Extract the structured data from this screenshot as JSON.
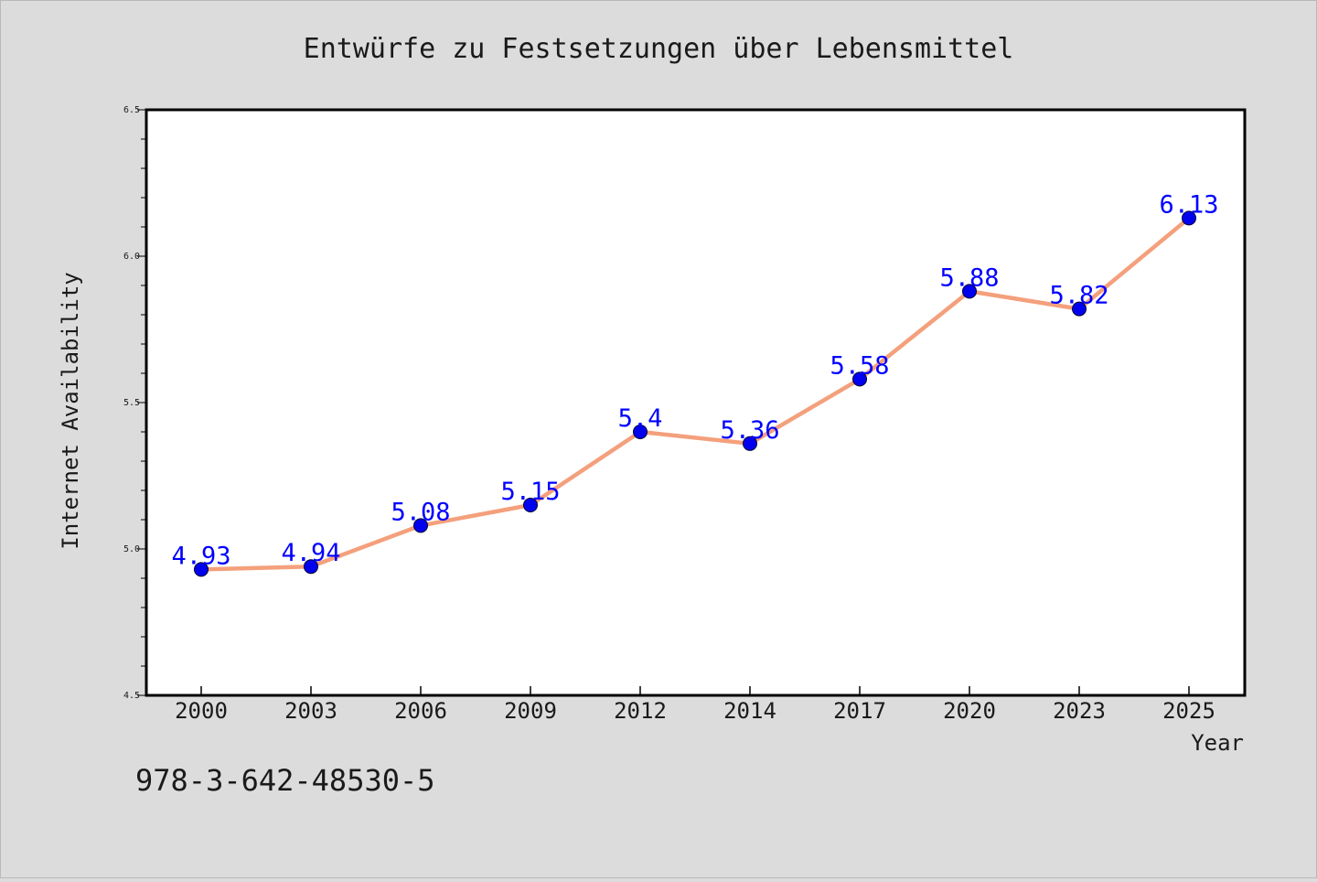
{
  "chart_data": {
    "type": "line",
    "title": "Entwürfe zu Festsetzungen über Lebensmittel",
    "xlabel": "Year",
    "ylabel": "Internet Availability",
    "x": [
      "2000",
      "2003",
      "2006",
      "2009",
      "2012",
      "2014",
      "2017",
      "2020",
      "2023",
      "2025"
    ],
    "series": [
      {
        "values": [
          4.93,
          4.94,
          5.08,
          5.15,
          5.4,
          5.36,
          5.58,
          5.88,
          5.82,
          6.13
        ]
      }
    ],
    "data_labels": [
      "4.93",
      "4.94",
      "5.08",
      "5.15",
      "5.4",
      "5.36",
      "5.58",
      "5.88",
      "5.82",
      "6.13"
    ],
    "ylim": [
      4.5,
      6.5
    ],
    "yticks": [
      "4.5",
      "5.0",
      "5.5",
      "6.0",
      "6.5"
    ],
    "grid": false,
    "colors": {
      "line": "#f4a07c",
      "marker": "#0000ee",
      "label": "#0000ff",
      "background": "#dcdcdc",
      "plot": "#ffffff"
    }
  },
  "footer": {
    "isbn": "978-3-642-48530-5"
  }
}
